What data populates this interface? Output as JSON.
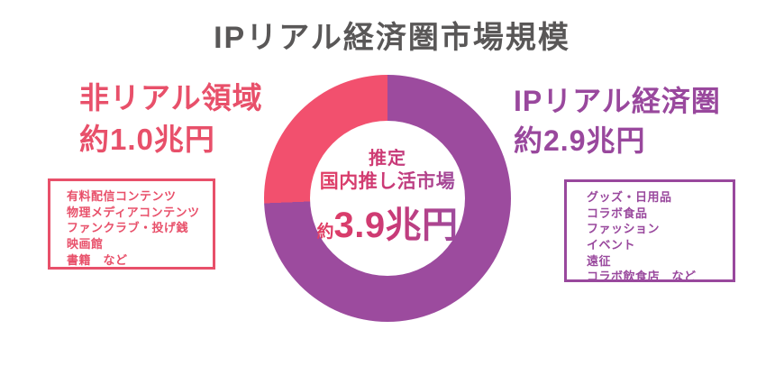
{
  "title": "IPリアル経済圏市場規模",
  "colors": {
    "pink_segment": "#f2506e",
    "purple_segment": "#9c4b9e",
    "pink_text": "#e8506a",
    "purple_text": "#99489d",
    "title_gray": "#595757"
  },
  "left": {
    "heading_line1": "非リアル領域",
    "heading_line2": "約1.0兆円",
    "items": [
      "有料配信コンテンツ",
      "物理メディアコンテンツ",
      "ファンクラブ・投げ銭",
      "映画館",
      "書籍　など"
    ]
  },
  "right": {
    "heading_line1": "IPリアル経済圏",
    "heading_line2": "約2.9兆円",
    "items": [
      "グッズ・日用品",
      "コラボ食品",
      "ファッション",
      "イベント",
      "遠征",
      "コラボ飲食店　など"
    ]
  },
  "center": {
    "line1": "推定",
    "line2": "国内推し活市場",
    "value_prefix": "約",
    "value": "3.9兆円"
  },
  "chart_data": {
    "type": "pie",
    "donut": true,
    "title": "IPリアル経済圏市場規模",
    "unit": "兆円",
    "total_value": 3.9,
    "total_label": "推定 国内推し活市場 約3.9兆円",
    "segments": [
      {
        "label": "IPリアル経済圏",
        "value": 2.9,
        "color": "#9c4b9e"
      },
      {
        "label": "非リアル領域",
        "value": 1.0,
        "color": "#f2506e"
      }
    ],
    "start_angle_deg": 0,
    "direction": "clockwise"
  }
}
